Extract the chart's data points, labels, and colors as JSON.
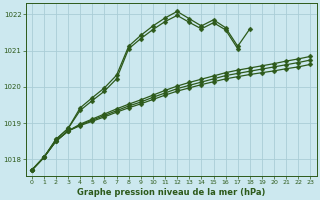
{
  "title": "Graphe pression niveau de la mer (hPa)",
  "background_color": "#cce8ef",
  "grid_color": "#aacdd6",
  "line_color": "#2d5a1b",
  "xlim": [
    -0.5,
    23.5
  ],
  "ylim": [
    1017.55,
    1022.3
  ],
  "yticks": [
    1018,
    1019,
    1020,
    1021,
    1022
  ],
  "xticks": [
    0,
    1,
    2,
    3,
    4,
    5,
    6,
    7,
    8,
    9,
    10,
    11,
    12,
    13,
    14,
    15,
    16,
    17,
    18,
    19,
    20,
    21,
    22,
    23
  ],
  "hours": [
    0,
    1,
    2,
    3,
    4,
    5,
    6,
    7,
    8,
    9,
    10,
    11,
    12,
    13,
    14,
    15,
    16,
    17,
    18,
    19,
    20,
    21,
    22,
    23
  ],
  "slow1": [
    1017.7,
    1018.05,
    1018.5,
    1018.78,
    1018.93,
    1019.05,
    1019.17,
    1019.3,
    1019.42,
    1019.53,
    1019.65,
    1019.77,
    1019.88,
    1019.97,
    1020.06,
    1020.14,
    1020.22,
    1020.28,
    1020.34,
    1020.39,
    1020.44,
    1020.5,
    1020.55,
    1020.62
  ],
  "slow2": [
    1017.7,
    1018.05,
    1018.5,
    1018.78,
    1018.95,
    1019.08,
    1019.21,
    1019.34,
    1019.47,
    1019.58,
    1019.71,
    1019.83,
    1019.95,
    1020.04,
    1020.13,
    1020.22,
    1020.31,
    1020.37,
    1020.43,
    1020.49,
    1020.55,
    1020.61,
    1020.67,
    1020.74
  ],
  "slow3": [
    1017.7,
    1018.05,
    1018.5,
    1018.78,
    1018.97,
    1019.11,
    1019.25,
    1019.39,
    1019.52,
    1019.64,
    1019.77,
    1019.9,
    1020.02,
    1020.12,
    1020.21,
    1020.3,
    1020.39,
    1020.46,
    1020.52,
    1020.58,
    1020.64,
    1020.71,
    1020.77,
    1020.84
  ],
  "peak1_x": [
    0,
    1,
    2,
    3,
    4,
    5,
    6,
    7,
    8,
    9,
    10,
    11,
    12,
    13,
    14,
    15,
    16,
    17
  ],
  "peak1_y": [
    1017.7,
    1018.05,
    1018.55,
    1018.85,
    1019.35,
    1019.62,
    1019.88,
    1020.22,
    1021.05,
    1021.33,
    1021.58,
    1021.8,
    1021.97,
    1021.78,
    1021.6,
    1021.77,
    1021.57,
    1021.05
  ],
  "peak2_x": [
    0,
    1,
    2,
    3,
    4,
    5,
    6,
    7,
    8,
    9,
    10,
    11,
    12,
    13,
    14,
    15,
    16,
    17,
    18
  ],
  "peak2_y": [
    1017.7,
    1018.05,
    1018.55,
    1018.85,
    1019.42,
    1019.7,
    1019.97,
    1020.32,
    1021.12,
    1021.42,
    1021.68,
    1021.9,
    1022.08,
    1021.88,
    1021.68,
    1021.85,
    1021.63,
    1021.12,
    1021.6
  ],
  "marker_size": 2.5,
  "linewidth": 0.9,
  "tick_fontsize": 5.0,
  "label_fontsize": 6.0
}
